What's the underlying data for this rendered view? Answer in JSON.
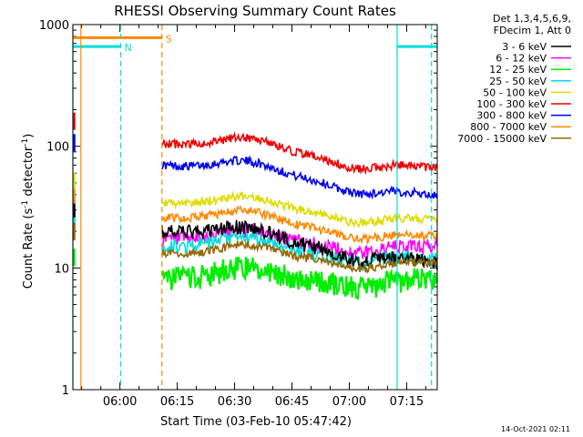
{
  "chart_data": {
    "type": "line",
    "title": "RHESSI Observing Summary Count Rates",
    "xlabel": "Start Time (03-Feb-10 05:47:42)",
    "ylabel_main": "Count Rate (s",
    "ylabel_sup1": "-1",
    "ylabel_mid": " detector",
    "ylabel_sup2": "-1",
    "ylabel_end": ")",
    "yscale": "log",
    "xlim_minutes_from_0600": [
      -12.3,
      83.0
    ],
    "ylim": [
      1,
      1000
    ],
    "xticks": [
      {
        "label": "06:00",
        "minutes": 0
      },
      {
        "label": "06:15",
        "minutes": 15
      },
      {
        "label": "06:30",
        "minutes": 30
      },
      {
        "label": "06:45",
        "minutes": 45
      },
      {
        "label": "07:00",
        "minutes": 60
      },
      {
        "label": "07:15",
        "minutes": 75
      }
    ],
    "yticks": [
      {
        "label": "1",
        "value": 1
      },
      {
        "label": "10",
        "value": 10
      },
      {
        "label": "100",
        "value": 100
      },
      {
        "label": "1000",
        "value": 1000
      }
    ],
    "legend_header": [
      "Det 1,3,4,5,6,9,",
      "FDecim 1, Att 0"
    ],
    "series": [
      {
        "name": "3 - 6 keV",
        "color": "#000000",
        "values": [
          20,
          16,
          11
        ]
      },
      {
        "name": "6 - 12 keV",
        "color": "#ff00ff",
        "values": [
          17,
          16,
          15
        ]
      },
      {
        "name": "12 - 25 keV",
        "color": "#00ee00",
        "values": [
          8,
          12,
          8
        ]
      },
      {
        "name": "25 - 50 keV",
        "color": "#00dddd",
        "values": [
          15,
          14,
          12
        ]
      },
      {
        "name": "50 - 100 keV",
        "color": "#dddd00",
        "values": [
          34,
          30,
          25
        ]
      },
      {
        "name": "100 - 300 keV",
        "color": "#ee0000",
        "values": [
          105,
          85,
          66
        ]
      },
      {
        "name": "300 - 800 keV",
        "color": "#0000ee",
        "values": [
          70,
          55,
          39
        ]
      },
      {
        "name": "800 - 7000 keV",
        "color": "#ff8800",
        "values": [
          26,
          22,
          18
        ]
      },
      {
        "name": "7000 - 15000 keV",
        "color": "#996600",
        "values": [
          13,
          12,
          11
        ]
      }
    ],
    "flags": [
      {
        "label": "S",
        "color": "#ff8800",
        "value": 780,
        "start_minutes": -12.3,
        "end_minutes": 11.0
      },
      {
        "label": "N",
        "color": "#00dddd",
        "value": 660,
        "start_minutes": -12.3,
        "end_minutes": 0.2
      },
      {
        "label": "",
        "color": "#00dddd",
        "value": 660,
        "start_minutes": 72.5,
        "end_minutes": 83.0
      }
    ],
    "vlines": [
      {
        "minutes": -12.3,
        "color": "#00dddd",
        "style": "solid"
      },
      {
        "minutes": -10.2,
        "color": "#ff8800",
        "style": "solid"
      },
      {
        "minutes": 0.2,
        "color": "#00dddd",
        "style": "dashed"
      },
      {
        "minutes": 11.0,
        "color": "#ff8800",
        "style": "dashed"
      },
      {
        "minutes": 72.5,
        "color": "#00dddd",
        "style": "solid"
      },
      {
        "minutes": 81.5,
        "color": "#00dddd",
        "style": "dashed"
      }
    ]
  },
  "footer": {
    "timestamp": "14-Oct-2021 02:11"
  }
}
